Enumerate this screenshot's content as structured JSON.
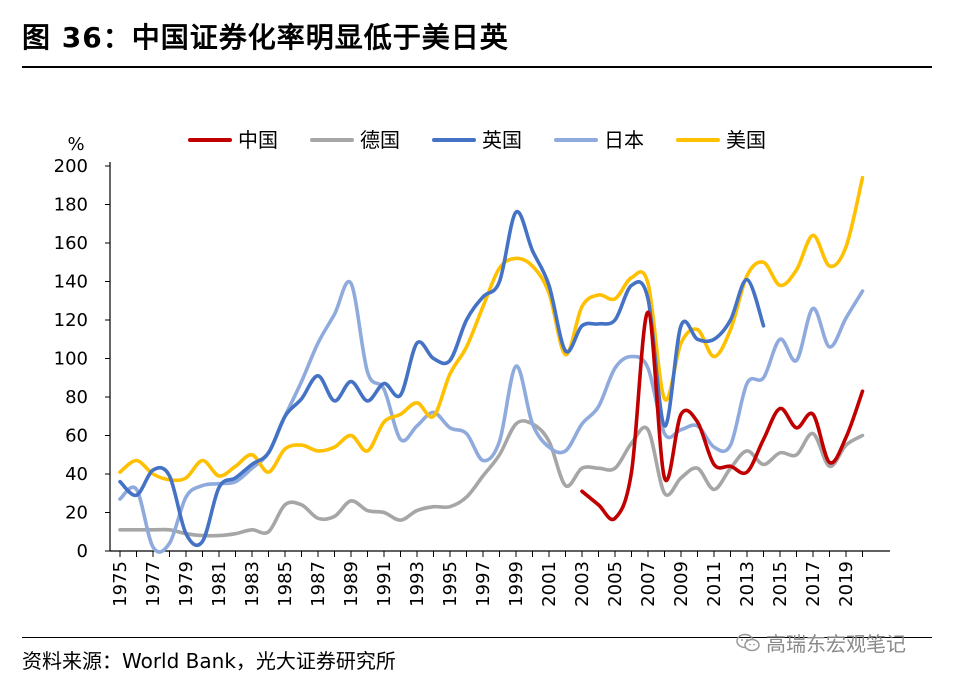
{
  "header": {
    "title": "图 36：中国证券化率明显低于美日英"
  },
  "footer": {
    "source": "资料来源：World Bank，光大证券研究所",
    "watermark": "高瑞东宏观笔记"
  },
  "chart_data": {
    "type": "line",
    "ylabel": "%",
    "ylim": [
      0,
      200
    ],
    "yticks": [
      0,
      20,
      40,
      60,
      80,
      100,
      120,
      140,
      160,
      180,
      200
    ],
    "xlim": [
      1975,
      2020
    ],
    "xticks": [
      "1975",
      "1977",
      "1979",
      "1981",
      "1983",
      "1985",
      "1987",
      "1989",
      "1991",
      "1993",
      "1995",
      "1997",
      "1999",
      "2001",
      "2003",
      "2005",
      "2007",
      "2009",
      "2011",
      "2013",
      "2015",
      "2017",
      "2019"
    ],
    "legend_position": "top",
    "grid": false,
    "series": [
      {
        "name": "中国",
        "color": "#C00000",
        "points": [
          [
            2003,
            31
          ],
          [
            2004,
            24
          ],
          [
            2005,
            17
          ],
          [
            2006,
            41
          ],
          [
            2007,
            124
          ],
          [
            2008,
            38
          ],
          [
            2009,
            71
          ],
          [
            2010,
            67
          ],
          [
            2011,
            45
          ],
          [
            2012,
            44
          ],
          [
            2013,
            41
          ],
          [
            2014,
            58
          ],
          [
            2015,
            74
          ],
          [
            2016,
            64
          ],
          [
            2017,
            71
          ],
          [
            2018,
            46
          ],
          [
            2019,
            59
          ],
          [
            2020,
            83
          ]
        ]
      },
      {
        "name": "德国",
        "color": "#A6A6A6",
        "points": [
          [
            1975,
            11
          ],
          [
            1976,
            11
          ],
          [
            1977,
            11
          ],
          [
            1978,
            11
          ],
          [
            1979,
            9
          ],
          [
            1980,
            8
          ],
          [
            1981,
            8
          ],
          [
            1982,
            9
          ],
          [
            1983,
            11
          ],
          [
            1984,
            10
          ],
          [
            1985,
            24
          ],
          [
            1986,
            24
          ],
          [
            1987,
            17
          ],
          [
            1988,
            18
          ],
          [
            1989,
            26
          ],
          [
            1990,
            21
          ],
          [
            1991,
            20
          ],
          [
            1992,
            16
          ],
          [
            1993,
            21
          ],
          [
            1994,
            23
          ],
          [
            1995,
            23
          ],
          [
            1996,
            28
          ],
          [
            1997,
            39
          ],
          [
            1998,
            50
          ],
          [
            1999,
            66
          ],
          [
            2000,
            66
          ],
          [
            2001,
            57
          ],
          [
            2002,
            34
          ],
          [
            2003,
            43
          ],
          [
            2004,
            43
          ],
          [
            2005,
            43
          ],
          [
            2006,
            56
          ],
          [
            2007,
            63
          ],
          [
            2008,
            30
          ],
          [
            2009,
            38
          ],
          [
            2010,
            43
          ],
          [
            2011,
            32
          ],
          [
            2012,
            43
          ],
          [
            2013,
            52
          ],
          [
            2014,
            45
          ],
          [
            2015,
            51
          ],
          [
            2016,
            50
          ],
          [
            2017,
            61
          ],
          [
            2018,
            44
          ],
          [
            2019,
            55
          ],
          [
            2020,
            60
          ]
        ]
      },
      {
        "name": "英国",
        "color": "#4472C4",
        "points": [
          [
            1975,
            36
          ],
          [
            1976,
            29
          ],
          [
            1977,
            42
          ],
          [
            1978,
            39
          ],
          [
            1979,
            9
          ],
          [
            1980,
            5
          ],
          [
            1981,
            33
          ],
          [
            1982,
            38
          ],
          [
            1983,
            45
          ],
          [
            1984,
            51
          ],
          [
            1985,
            70
          ],
          [
            1986,
            79
          ],
          [
            1987,
            91
          ],
          [
            1988,
            78
          ],
          [
            1989,
            88
          ],
          [
            1990,
            78
          ],
          [
            1991,
            87
          ],
          [
            1992,
            81
          ],
          [
            1993,
            108
          ],
          [
            1994,
            100
          ],
          [
            1995,
            99
          ],
          [
            1996,
            120
          ],
          [
            1997,
            132
          ],
          [
            1998,
            140
          ],
          [
            1999,
            176
          ],
          [
            2000,
            156
          ],
          [
            2001,
            138
          ],
          [
            2002,
            104
          ],
          [
            2003,
            117
          ],
          [
            2004,
            118
          ],
          [
            2005,
            120
          ],
          [
            2006,
            138
          ],
          [
            2007,
            131
          ],
          [
            2008,
            65
          ],
          [
            2009,
            117
          ],
          [
            2010,
            110
          ],
          [
            2011,
            110
          ],
          [
            2012,
            120
          ],
          [
            2013,
            141
          ],
          [
            2014,
            117
          ]
        ]
      },
      {
        "name": "日本",
        "color": "#8FAADC",
        "points": [
          [
            1975,
            27
          ],
          [
            1976,
            32
          ],
          [
            1977,
            2
          ],
          [
            1978,
            4
          ],
          [
            1979,
            28
          ],
          [
            1980,
            34
          ],
          [
            1981,
            35
          ],
          [
            1982,
            36
          ],
          [
            1983,
            43
          ],
          [
            1984,
            51
          ],
          [
            1985,
            70
          ],
          [
            1986,
            88
          ],
          [
            1987,
            108
          ],
          [
            1988,
            123
          ],
          [
            1989,
            139
          ],
          [
            1990,
            93
          ],
          [
            1991,
            84
          ],
          [
            1992,
            58
          ],
          [
            1993,
            65
          ],
          [
            1994,
            72
          ],
          [
            1995,
            64
          ],
          [
            1996,
            61
          ],
          [
            1997,
            47
          ],
          [
            1998,
            57
          ],
          [
            1999,
            96
          ],
          [
            2000,
            66
          ],
          [
            2001,
            54
          ],
          [
            2002,
            52
          ],
          [
            2003,
            66
          ],
          [
            2004,
            75
          ],
          [
            2005,
            95
          ],
          [
            2006,
            101
          ],
          [
            2007,
            95
          ],
          [
            2008,
            61
          ],
          [
            2009,
            63
          ],
          [
            2010,
            65
          ],
          [
            2011,
            54
          ],
          [
            2012,
            55
          ],
          [
            2013,
            87
          ],
          [
            2014,
            90
          ],
          [
            2015,
            110
          ],
          [
            2016,
            99
          ],
          [
            2017,
            126
          ],
          [
            2018,
            106
          ],
          [
            2019,
            121
          ],
          [
            2020,
            135
          ]
        ]
      },
      {
        "name": "美国",
        "color": "#FFC000",
        "points": [
          [
            1975,
            41
          ],
          [
            1976,
            47
          ],
          [
            1977,
            40
          ],
          [
            1978,
            37
          ],
          [
            1979,
            38
          ],
          [
            1980,
            47
          ],
          [
            1981,
            39
          ],
          [
            1982,
            44
          ],
          [
            1983,
            50
          ],
          [
            1984,
            41
          ],
          [
            1985,
            53
          ],
          [
            1986,
            55
          ],
          [
            1987,
            52
          ],
          [
            1988,
            54
          ],
          [
            1989,
            60
          ],
          [
            1990,
            52
          ],
          [
            1991,
            67
          ],
          [
            1992,
            71
          ],
          [
            1993,
            77
          ],
          [
            1994,
            70
          ],
          [
            1995,
            92
          ],
          [
            1996,
            106
          ],
          [
            1997,
            127
          ],
          [
            1998,
            147
          ],
          [
            1999,
            152
          ],
          [
            2000,
            148
          ],
          [
            2001,
            134
          ],
          [
            2002,
            102
          ],
          [
            2003,
            127
          ],
          [
            2004,
            133
          ],
          [
            2005,
            131
          ],
          [
            2006,
            142
          ],
          [
            2007,
            139
          ],
          [
            2008,
            79
          ],
          [
            2009,
            108
          ],
          [
            2010,
            115
          ],
          [
            2011,
            101
          ],
          [
            2012,
            115
          ],
          [
            2013,
            143
          ],
          [
            2014,
            150
          ],
          [
            2015,
            138
          ],
          [
            2016,
            146
          ],
          [
            2017,
            164
          ],
          [
            2018,
            148
          ],
          [
            2019,
            158
          ],
          [
            2020,
            194
          ]
        ]
      }
    ]
  }
}
